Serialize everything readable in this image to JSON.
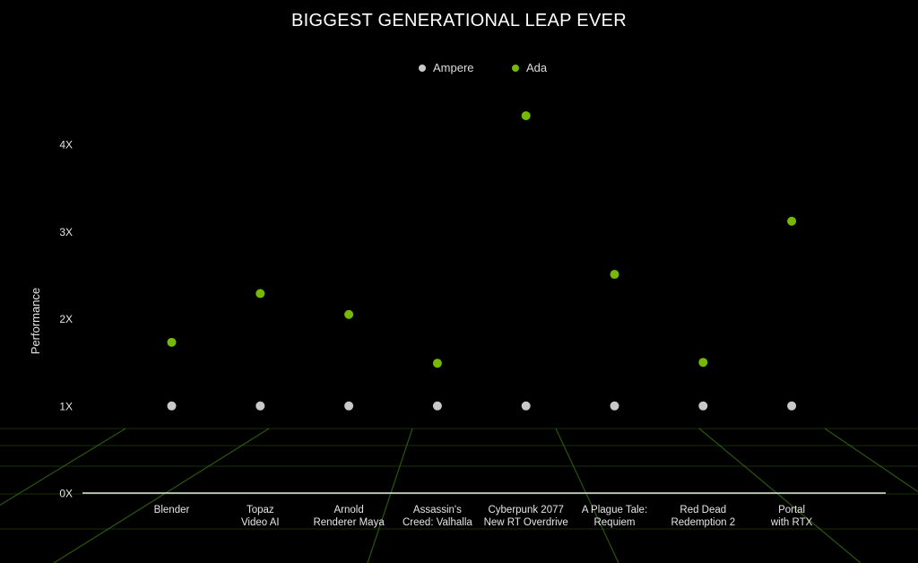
{
  "title": "BIGGEST GENERATIONAL LEAP EVER",
  "legend": [
    {
      "label": "Ampere",
      "color": "#c9c9c9"
    },
    {
      "label": "Ada",
      "color": "#76b900"
    }
  ],
  "chart_data": {
    "type": "scatter",
    "title": "BIGGEST GENERATIONAL LEAP EVER",
    "ylabel": "Performance",
    "xlabel": "",
    "ylim": [
      0,
      4.5
    ],
    "yticks": [
      "0X",
      "1X",
      "2X",
      "3X",
      "4X"
    ],
    "ytick_values": [
      0,
      1,
      2,
      3,
      4
    ],
    "categories": [
      [
        "Blender"
      ],
      [
        "Topaz",
        "Video AI"
      ],
      [
        "Arnold",
        "Renderer Maya"
      ],
      [
        "Assassin's",
        "Creed: Valhalla"
      ],
      [
        "Cyberpunk 2077",
        "New RT Overdrive"
      ],
      [
        "A Plague Tale:",
        "Requiem"
      ],
      [
        "Red Dead",
        "Redemption 2"
      ],
      [
        "Portal",
        "with RTX"
      ]
    ],
    "series": [
      {
        "name": "Ampere",
        "color": "#c9c9c9",
        "values": [
          1,
          1,
          1,
          1,
          1,
          1,
          1,
          1
        ]
      },
      {
        "name": "Ada",
        "color": "#76b900",
        "values": [
          1.73,
          2.29,
          2.05,
          1.49,
          4.33,
          2.51,
          1.5,
          3.12
        ]
      }
    ],
    "legend_position": "top-center",
    "grid": false
  }
}
